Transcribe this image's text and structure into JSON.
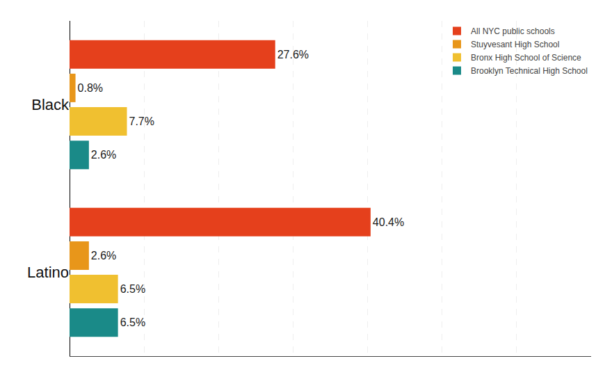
{
  "chart_data": {
    "type": "bar",
    "orientation": "horizontal",
    "categories": [
      "Black",
      "Latino"
    ],
    "series": [
      {
        "name": "All NYC public schools",
        "color": "#E5401C",
        "values": [
          27.6,
          40.4
        ],
        "value_labels": [
          "27.6%",
          "40.4%"
        ]
      },
      {
        "name": "Stuyvesant High School",
        "color": "#E8961A",
        "values": [
          0.8,
          2.6
        ],
        "value_labels": [
          "0.8%",
          "2.6%"
        ]
      },
      {
        "name": "Bronx High School of Science",
        "color": "#F0C030",
        "values": [
          7.7,
          6.5
        ],
        "value_labels": [
          "7.7%",
          "6.5%"
        ]
      },
      {
        "name": "Brooklyn Technical High School",
        "color": "#1A8A88",
        "values": [
          2.6,
          6.5
        ],
        "value_labels": [
          "2.6%",
          "6.5%"
        ]
      }
    ],
    "xlim": [
      0,
      70
    ],
    "xticks": [
      10,
      20,
      30,
      40,
      50,
      60
    ],
    "grid": true,
    "legend": "upper right",
    "data_labels": true,
    "tick_labels": "y"
  }
}
